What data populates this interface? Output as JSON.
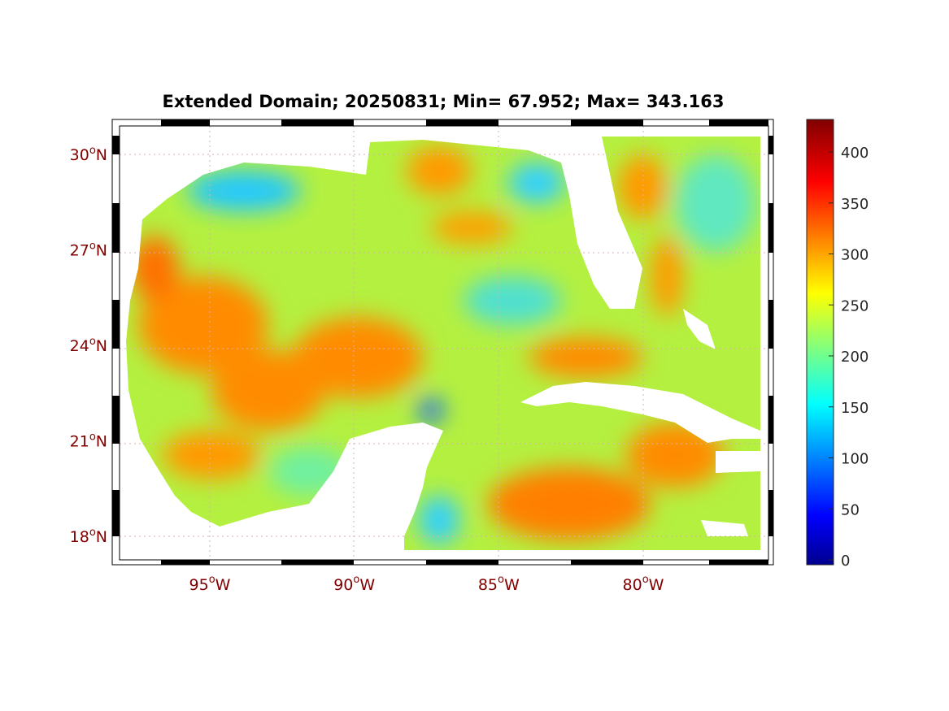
{
  "title": "Extended Domain; 20250831; Min= 67.952; Max= 343.163",
  "map": {
    "lat_labels": [
      {
        "deg": "30",
        "hemi": "N",
        "value": 30
      },
      {
        "deg": "27",
        "hemi": "N",
        "value": 27
      },
      {
        "deg": "24",
        "hemi": "N",
        "value": 24
      },
      {
        "deg": "21",
        "hemi": "N",
        "value": 21
      },
      {
        "deg": "18",
        "hemi": "N",
        "value": 18
      }
    ],
    "lon_labels": [
      {
        "deg": "95",
        "hemi": "W",
        "value": -95
      },
      {
        "deg": "90",
        "hemi": "W",
        "value": -90
      },
      {
        "deg": "85",
        "hemi": "W",
        "value": -85
      },
      {
        "deg": "80",
        "hemi": "W",
        "value": -80
      }
    ],
    "degree_symbol": "o"
  },
  "colorbar": {
    "colormap": "jet",
    "range": [
      0,
      432
    ],
    "ticks": [
      "0",
      "50",
      "100",
      "150",
      "200",
      "250",
      "300",
      "350",
      "400"
    ],
    "tick_values": [
      0,
      50,
      100,
      150,
      200,
      250,
      300,
      350,
      400
    ]
  },
  "colors": {
    "label": "#800000",
    "text": "#262626"
  }
}
